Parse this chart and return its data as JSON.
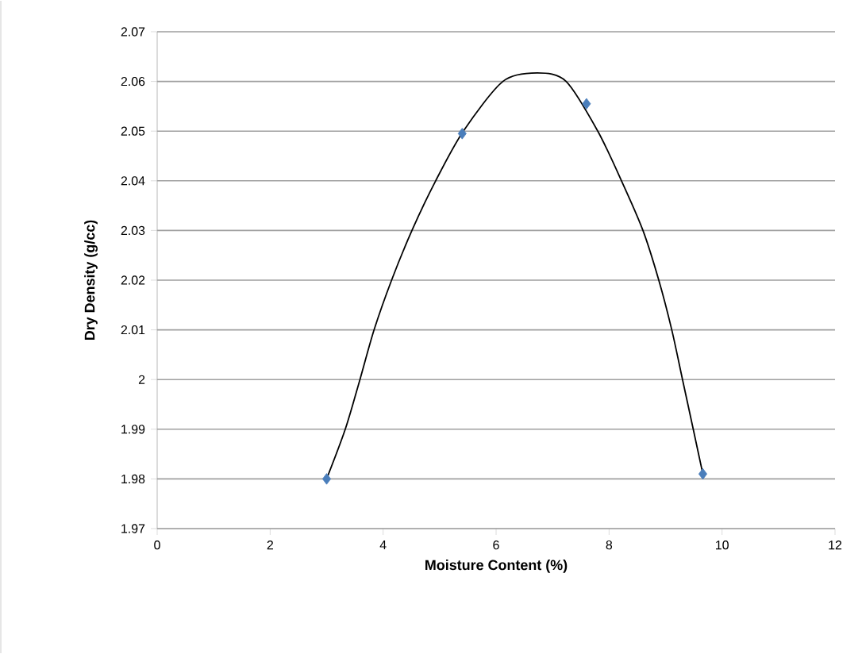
{
  "chart_data": {
    "type": "scatter",
    "xlabel": "Moisture Content (%)",
    "ylabel": "Dry Density (g/cc)",
    "xlim": [
      0,
      12
    ],
    "xticks": [
      0,
      2,
      4,
      6,
      8,
      10,
      12
    ],
    "ylim": [
      1.97,
      2.07
    ],
    "yticks": [
      1.97,
      1.98,
      1.99,
      2,
      2.01,
      2.02,
      2.03,
      2.04,
      2.05,
      2.06,
      2.07
    ],
    "grid": "y",
    "series": [
      {
        "type": "line",
        "color": "#000000",
        "marker": "none",
        "x": [
          3.0,
          3.33,
          3.59,
          3.84,
          4.15,
          4.51,
          4.93,
          5.42,
          6.12,
          6.73,
          7.24,
          7.8,
          8.22,
          8.6,
          8.88,
          9.11,
          9.3,
          9.49,
          9.66
        ],
        "values": [
          1.98,
          1.99,
          2.0,
          2.01,
          2.02,
          2.03,
          2.04,
          2.05,
          2.06,
          2.0617,
          2.06,
          2.05,
          2.04,
          2.03,
          2.02,
          2.01,
          2.0,
          1.99,
          1.981
        ]
      },
      {
        "color": "#4a7ebb",
        "marker": "diamond",
        "x": [
          3.0,
          5.4,
          7.6,
          9.66
        ],
        "values": [
          1.98,
          2.0495,
          2.0555,
          1.981
        ]
      }
    ]
  }
}
